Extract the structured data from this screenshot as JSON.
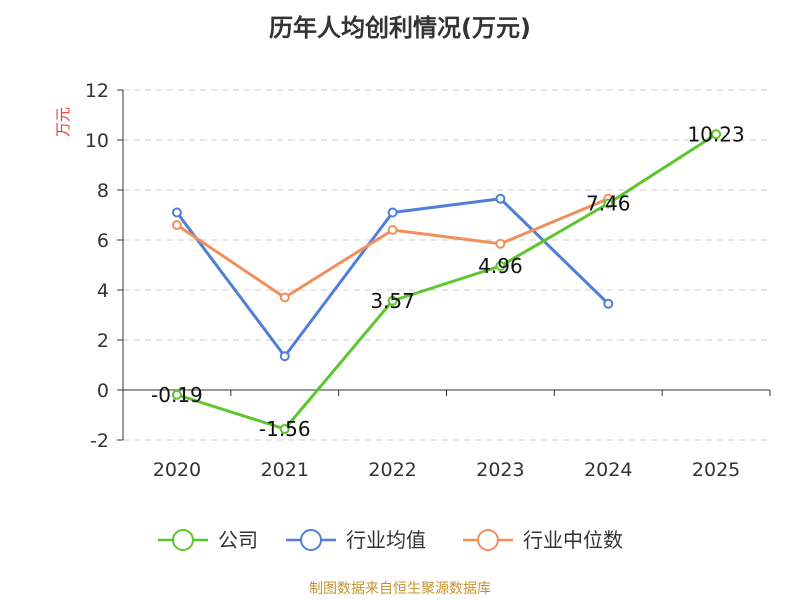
{
  "chart_data": {
    "type": "line",
    "title": "历年人均创利情况(万元)",
    "ylabel": "万元",
    "xlabel": "",
    "categories": [
      "2020",
      "2021",
      "2022",
      "2023",
      "2024",
      "2025"
    ],
    "ylim": [
      -2,
      12
    ],
    "yticks": [
      -2,
      0,
      2,
      4,
      6,
      8,
      10,
      12
    ],
    "grid": true,
    "legend_position": "bottom",
    "series": [
      {
        "name": "公司",
        "color": "#5cc72d",
        "values": [
          -0.19,
          -1.56,
          3.57,
          4.96,
          7.46,
          10.23
        ],
        "show_labels": true
      },
      {
        "name": "行业均值",
        "color": "#4f7fd8",
        "values": [
          7.1,
          1.35,
          7.1,
          7.65,
          3.45,
          null
        ],
        "show_labels": false
      },
      {
        "name": "行业中位数",
        "color": "#f28f5b",
        "values": [
          6.6,
          3.7,
          6.4,
          5.85,
          7.65,
          null
        ],
        "show_labels": false
      }
    ],
    "data_labels": [
      "-0.19",
      "-1.56",
      "3.57",
      "4.96",
      "7.46",
      "10.23"
    ]
  },
  "footer": {
    "source": "制图数据来自恒生聚源数据库"
  },
  "colors": {
    "ylabel": "#e53935",
    "grid": "#cccccc",
    "axis": "#333333",
    "source": "#c8922a"
  }
}
